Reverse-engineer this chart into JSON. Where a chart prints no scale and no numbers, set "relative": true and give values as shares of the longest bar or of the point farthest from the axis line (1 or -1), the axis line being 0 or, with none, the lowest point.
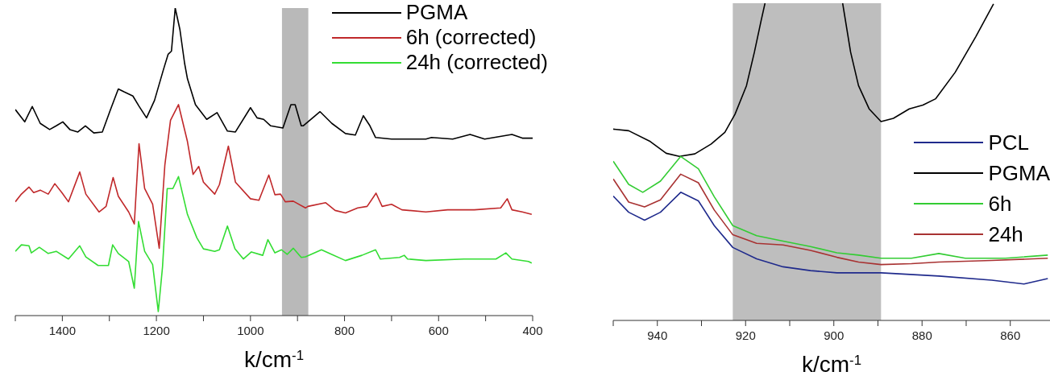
{
  "chart_data": [
    {
      "type": "line",
      "relative": true,
      "xlabel": "k/cm$^{-1}$",
      "xlim": [
        1500,
        400
      ],
      "xticks": [
        {
          "value": 1500,
          "label": null
        },
        1400,
        {
          "value": 1300,
          "label": null
        },
        1200,
        {
          "value": 1100,
          "label": null
        },
        1000,
        {
          "value": 900,
          "label": null
        },
        800,
        {
          "value": 700,
          "label": null
        },
        600,
        {
          "value": 500,
          "label": null
        },
        400
      ],
      "legend": "top right",
      "bands": [
        {
          "axis": "x",
          "from": 933,
          "to": 877,
          "color": "#b9b9b9"
        }
      ],
      "series": [
        {
          "name": "PGMA",
          "color": "#000000",
          "x": [
            1500,
            1480,
            1464,
            1447,
            1427,
            1413,
            1399,
            1384,
            1367,
            1351,
            1333,
            1315,
            1298,
            1281,
            1268,
            1250,
            1237,
            1221,
            1204,
            1185,
            1175,
            1168,
            1160,
            1150,
            1140,
            1134,
            1117,
            1093,
            1071,
            1049,
            1032,
            1000,
            986,
            972,
            957,
            931,
            914,
            905,
            892,
            888,
            852,
            827,
            798,
            777,
            760,
            746,
            734,
            700,
            627,
            615,
            570,
            533,
            502,
            444,
            422,
            400
          ],
          "values": [
            0.67,
            0.63,
            0.68,
            0.625,
            0.605,
            0.617,
            0.63,
            0.605,
            0.597,
            0.617,
            0.594,
            0.597,
            0.668,
            0.737,
            0.727,
            0.714,
            0.681,
            0.643,
            0.7,
            0.8,
            0.85,
            0.86,
            1.0,
            0.93,
            0.82,
            0.77,
            0.686,
            0.638,
            0.66,
            0.6,
            0.597,
            0.676,
            0.643,
            0.638,
            0.617,
            0.61,
            0.686,
            0.686,
            0.617,
            0.617,
            0.663,
            0.625,
            0.592,
            0.587,
            0.65,
            0.617,
            0.579,
            0.574,
            0.574,
            0.579,
            0.574,
            0.589,
            0.574,
            0.589,
            0.577,
            0.577
          ]
        },
        {
          "name": "6h (corrected)",
          "color": "#c0282a",
          "x": [
            1500,
            1487,
            1471,
            1461,
            1447,
            1430,
            1416,
            1401,
            1387,
            1363,
            1350,
            1322,
            1307,
            1292,
            1281,
            1259,
            1247,
            1237,
            1225,
            1208,
            1194,
            1182,
            1170,
            1153,
            1134,
            1122,
            1110,
            1100,
            1076,
            1066,
            1047,
            1032,
            1000,
            982,
            961,
            948,
            936,
            926,
            909,
            883,
            878,
            840,
            820,
            798,
            772,
            752,
            733,
            720,
            700,
            678,
            627,
            581,
            524,
            468,
            454,
            444,
            422,
            402
          ],
          "values": [
            0.37,
            0.395,
            0.418,
            0.4,
            0.408,
            0.395,
            0.429,
            0.4,
            0.37,
            0.467,
            0.395,
            0.337,
            0.355,
            0.449,
            0.388,
            0.337,
            0.298,
            0.559,
            0.413,
            0.362,
            0.219,
            0.49,
            0.635,
            0.686,
            0.566,
            0.459,
            0.485,
            0.434,
            0.395,
            0.426,
            0.551,
            0.434,
            0.38,
            0.375,
            0.457,
            0.393,
            0.395,
            0.37,
            0.372,
            0.35,
            0.355,
            0.367,
            0.342,
            0.334,
            0.35,
            0.355,
            0.398,
            0.355,
            0.362,
            0.344,
            0.337,
            0.344,
            0.344,
            0.35,
            0.38,
            0.344,
            0.337,
            0.329
          ]
        },
        {
          "name": "24h (corrected)",
          "color": "#33dd33",
          "x": [
            1500,
            1487,
            1471,
            1466,
            1449,
            1430,
            1413,
            1387,
            1363,
            1350,
            1324,
            1302,
            1293,
            1281,
            1259,
            1247,
            1238,
            1225,
            1208,
            1196,
            1187,
            1177,
            1165,
            1153,
            1134,
            1114,
            1100,
            1076,
            1066,
            1049,
            1033,
            1015,
            998,
            974,
            963,
            948,
            934,
            922,
            909,
            892,
            883,
            849,
            832,
            798,
            763,
            734,
            724,
            683,
            673,
            666,
            627,
            546,
            478,
            457,
            444,
            409,
            402
          ],
          "values": [
            0.209,
            0.23,
            0.227,
            0.204,
            0.222,
            0.202,
            0.209,
            0.184,
            0.227,
            0.191,
            0.163,
            0.163,
            0.23,
            0.202,
            0.176,
            0.089,
            0.306,
            0.209,
            0.166,
            0.013,
            0.158,
            0.413,
            0.413,
            0.452,
            0.329,
            0.253,
            0.217,
            0.209,
            0.214,
            0.291,
            0.217,
            0.184,
            0.207,
            0.196,
            0.247,
            0.204,
            0.214,
            0.199,
            0.219,
            0.189,
            0.191,
            0.214,
            0.202,
            0.179,
            0.196,
            0.214,
            0.184,
            0.189,
            0.196,
            0.184,
            0.179,
            0.184,
            0.184,
            0.204,
            0.184,
            0.176,
            0.171
          ]
        }
      ]
    },
    {
      "type": "line",
      "relative": true,
      "xlabel": "k/cm$^{-1}$",
      "xlim": [
        950,
        851
      ],
      "xticks": [
        {
          "value": 950,
          "label": null
        },
        940,
        {
          "value": 930,
          "label": null
        },
        920,
        {
          "value": 910,
          "label": null
        },
        900,
        {
          "value": 890,
          "label": null
        },
        880,
        {
          "value": 870,
          "label": null
        },
        860
      ],
      "legend": "right",
      "bands": [
        {
          "axis": "x",
          "from": 922.9,
          "to": 889.3,
          "color": "#bebebe"
        }
      ],
      "series": [
        {
          "name": "PCL",
          "color": "#1f2a8c",
          "x": [
            950,
            946.5,
            942.9,
            939.3,
            934.7,
            930.7,
            927.1,
            922.9,
            917.5,
            911.5,
            905.3,
            899.3,
            889.3,
            876.2,
            864.2,
            856.9,
            851.5
          ],
          "values": [
            0.392,
            0.341,
            0.316,
            0.341,
            0.404,
            0.377,
            0.299,
            0.23,
            0.194,
            0.169,
            0.157,
            0.15,
            0.15,
            0.14,
            0.127,
            0.115,
            0.132
          ]
        },
        {
          "name": "PGMA",
          "color": "#000000",
          "x": [
            950,
            946.5,
            941.6,
            938,
            935,
            931.5,
            927.8,
            924.7,
            922.4,
            919.8,
            918,
            916.5,
            915.6,
            906,
            898,
            896.2,
            894.4,
            892,
            889.3,
            886.5,
            882.9,
            879.8,
            876.9,
            872.5,
            867.8,
            863.8
          ],
          "values": [
            0.603,
            0.598,
            0.564,
            0.527,
            0.517,
            0.525,
            0.556,
            0.593,
            0.65,
            0.74,
            0.846,
            0.944,
            1.0,
            null,
            1.0,
            0.846,
            0.74,
            0.667,
            0.627,
            0.637,
            0.667,
            0.679,
            0.699,
            0.782,
            0.895,
            0.998
          ]
        },
        {
          "name": "6h",
          "color": "#33cc33",
          "x": [
            950,
            946.5,
            943.3,
            939.3,
            934.7,
            930.7,
            927.1,
            922.9,
            917.5,
            911.5,
            905.3,
            899.3,
            894.4,
            889.3,
            882.4,
            876.2,
            870.2,
            861.1,
            851.5
          ],
          "values": [
            0.502,
            0.429,
            0.404,
            0.439,
            0.517,
            0.478,
            0.39,
            0.299,
            0.267,
            0.25,
            0.233,
            0.213,
            0.206,
            0.196,
            0.196,
            0.211,
            0.196,
            0.196,
            0.206
          ]
        },
        {
          "name": "24h",
          "color": "#a83232",
          "x": [
            950,
            946.5,
            942.9,
            939.3,
            934.7,
            930.7,
            927.1,
            922.9,
            917.5,
            911.5,
            905.3,
            899.3,
            894.4,
            889.3,
            882.4,
            876.2,
            864.2,
            851.5
          ],
          "values": [
            0.446,
            0.373,
            0.358,
            0.38,
            0.461,
            0.434,
            0.348,
            0.27,
            0.243,
            0.238,
            0.221,
            0.199,
            0.184,
            0.176,
            0.179,
            0.184,
            0.189,
            0.196
          ]
        }
      ]
    }
  ]
}
